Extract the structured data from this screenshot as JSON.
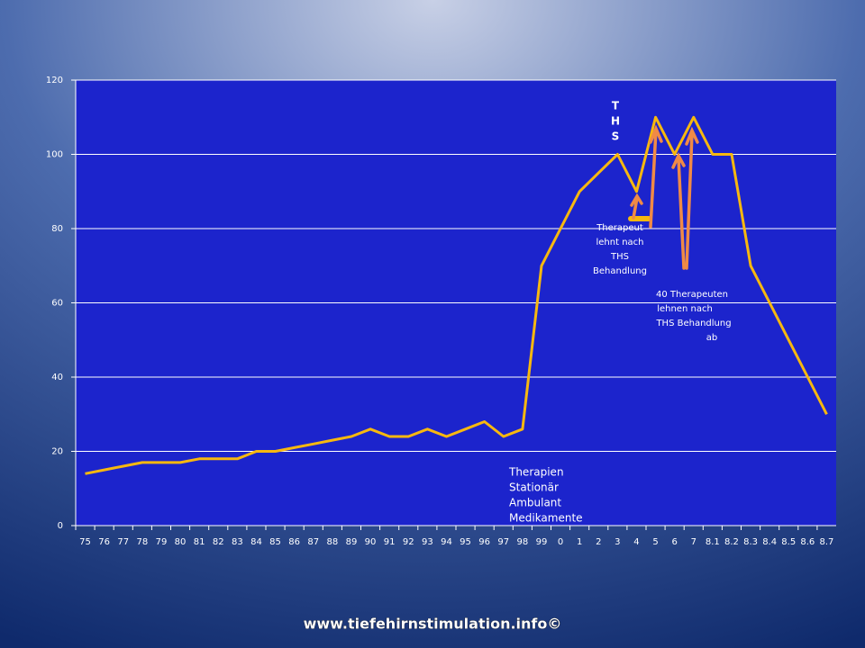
{
  "chart_data": {
    "type": "line",
    "categories": [
      "75",
      "76",
      "77",
      "78",
      "79",
      "80",
      "81",
      "82",
      "83",
      "84",
      "85",
      "86",
      "87",
      "88",
      "89",
      "90",
      "91",
      "92",
      "93",
      "94",
      "95",
      "96",
      "97",
      "98",
      "99",
      "0",
      "1",
      "2",
      "3",
      "4",
      "5",
      "6",
      "7",
      "8.1",
      "8.2",
      "8.3",
      "8.4",
      "8.5",
      "8.6",
      "8.7"
    ],
    "values": [
      14,
      15,
      16,
      17,
      17,
      17,
      18,
      18,
      18,
      20,
      20,
      21,
      22,
      23,
      24,
      26,
      24,
      24,
      26,
      24,
      26,
      28,
      24,
      26,
      70,
      80,
      90,
      95,
      100,
      90,
      110,
      100,
      110,
      100,
      100,
      70,
      60,
      50,
      40,
      30
    ],
    "color": "#f7b80f",
    "ylim": [
      0,
      120
    ],
    "yticks": [
      0,
      20,
      40,
      60,
      80,
      100,
      120
    ],
    "grid": true,
    "annotations": {
      "ths": [
        "T",
        "H",
        "S"
      ],
      "therapeut": [
        "Therapeut",
        "lehnt nach",
        "THS",
        "Behandlung"
      ],
      "therapeuten": [
        "40 Therapeuten",
        "lehnen nach",
        "THS Behandlung",
        "ab"
      ],
      "therapien": [
        "Therapien",
        "Stationär",
        "Ambulant",
        "Medikamente"
      ]
    },
    "footer": "www.tiefehirnstimulation.info©"
  }
}
